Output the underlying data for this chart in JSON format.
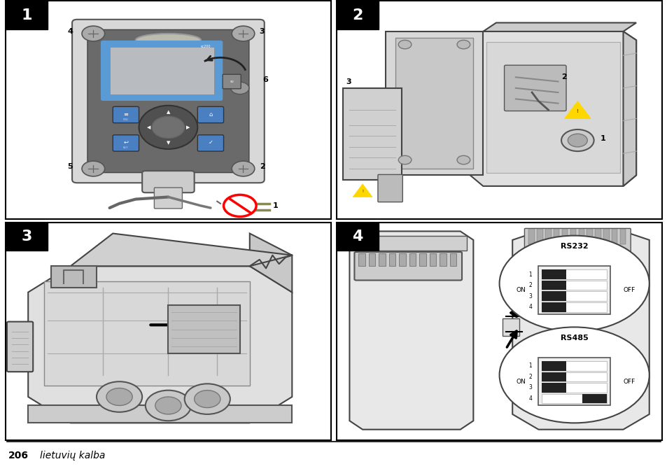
{
  "bg_color": "#ffffff",
  "border_color": "#000000",
  "panel_label_bg": "#000000",
  "panel_label_color": "#ffffff",
  "panel_labels": [
    "1",
    "2",
    "3",
    "4"
  ],
  "footer_number": "206",
  "footer_text": "lietuvių kalba",
  "footer_line_color": "#000000",
  "label_fontsize": 16,
  "footer_fontsize": 10,
  "gray_light": "#e8e8e8",
  "gray_mid": "#c0c0c0",
  "gray_dark": "#888888",
  "gray_body": "#d0d0d0",
  "blue_screen": "#5b9bd5",
  "blue_button": "#4a7fc1",
  "dark_panel": "#6a6a6a"
}
